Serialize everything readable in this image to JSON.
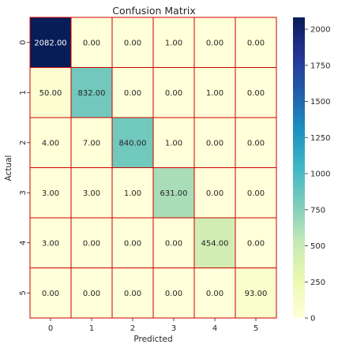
{
  "chart_data": {
    "type": "heatmap",
    "title": "Confusion Matrix",
    "xlabel": "Predicted",
    "ylabel": "Actual",
    "x_categories": [
      "0",
      "1",
      "2",
      "3",
      "4",
      "5"
    ],
    "y_categories": [
      "0",
      "1",
      "2",
      "3",
      "4",
      "5"
    ],
    "values": [
      [
        2082,
        0,
        0,
        1,
        0,
        0
      ],
      [
        50,
        832,
        0,
        0,
        1,
        0
      ],
      [
        4,
        7,
        840,
        1,
        0,
        0
      ],
      [
        3,
        3,
        1,
        631,
        0,
        0
      ],
      [
        3,
        0,
        0,
        0,
        454,
        0
      ],
      [
        0,
        0,
        0,
        0,
        0,
        93
      ]
    ],
    "cell_labels": [
      [
        "2082.00",
        "0.00",
        "0.00",
        "1.00",
        "0.00",
        "0.00"
      ],
      [
        "50.00",
        "832.00",
        "0.00",
        "0.00",
        "1.00",
        "0.00"
      ],
      [
        "4.00",
        "7.00",
        "840.00",
        "1.00",
        "0.00",
        "0.00"
      ],
      [
        "3.00",
        "3.00",
        "1.00",
        "631.00",
        "0.00",
        "0.00"
      ],
      [
        "3.00",
        "0.00",
        "0.00",
        "0.00",
        "454.00",
        "0.00"
      ],
      [
        "0.00",
        "0.00",
        "0.00",
        "0.00",
        "0.00",
        "93.00"
      ]
    ],
    "colormap": "YlGnBu",
    "color_range": [
      0,
      2082
    ],
    "colorbar_ticks": [
      0,
      250,
      500,
      750,
      1000,
      1250,
      1500,
      1750,
      2000
    ],
    "grid_line_color": "#cc0000",
    "dark_text_color": "#262626",
    "light_text_color": "#ffffff"
  }
}
